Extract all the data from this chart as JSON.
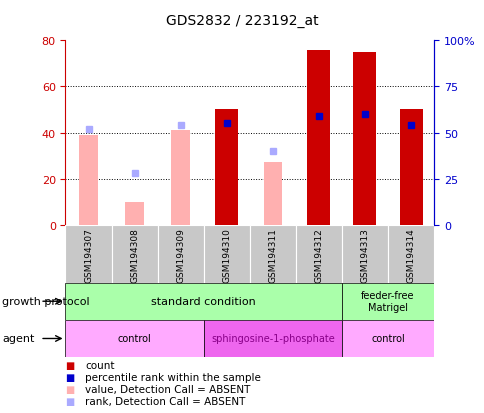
{
  "title": "GDS2832 / 223192_at",
  "samples": [
    "GSM194307",
    "GSM194308",
    "GSM194309",
    "GSM194310",
    "GSM194311",
    "GSM194312",
    "GSM194313",
    "GSM194314"
  ],
  "count_values": [
    null,
    null,
    null,
    50,
    null,
    76,
    75,
    50
  ],
  "count_color": "#cc0000",
  "absent_value_bars": [
    39,
    10,
    41,
    null,
    27,
    null,
    null,
    null
  ],
  "absent_value_color": "#ffb0b0",
  "absent_rank_dots": [
    52,
    28,
    54,
    null,
    40,
    null,
    null,
    null
  ],
  "absent_rank_color": "#aaaaff",
  "present_rank_dots": [
    null,
    null,
    null,
    55,
    null,
    59,
    60,
    54
  ],
  "present_rank_color": "#0000cc",
  "ylim_left": [
    0,
    80
  ],
  "ylim_right": [
    0,
    100
  ],
  "yticks_left": [
    0,
    20,
    40,
    60,
    80
  ],
  "yticks_right": [
    0,
    25,
    50,
    75,
    100
  ],
  "ytick_labels_right": [
    "0",
    "25",
    "50",
    "75",
    "100%"
  ],
  "left_axis_color": "#cc0000",
  "right_axis_color": "#0000cc",
  "grid_lines": [
    20,
    40,
    60
  ],
  "growth_spans": [
    {
      "label": "standard condition",
      "start": 0,
      "end": 6,
      "color": "#aaffaa"
    },
    {
      "label": "feeder-free\nMatrigel",
      "start": 6,
      "end": 8,
      "color": "#aaffaa"
    }
  ],
  "agent_spans": [
    {
      "label": "control",
      "start": 0,
      "end": 3,
      "color": "#ffaaff"
    },
    {
      "label": "sphingosine-1-phosphate",
      "start": 3,
      "end": 6,
      "color": "#ee66ee"
    },
    {
      "label": "control",
      "start": 6,
      "end": 8,
      "color": "#ffaaff"
    }
  ],
  "agent_text_colors": [
    "black",
    "#880088",
    "black"
  ],
  "row_label_growth": "growth protocol",
  "row_label_agent": "agent",
  "sample_bg_color": "#c8c8c8",
  "legend_items": [
    {
      "label": "count",
      "color": "#cc0000"
    },
    {
      "label": "percentile rank within the sample",
      "color": "#0000cc"
    },
    {
      "label": "value, Detection Call = ABSENT",
      "color": "#ffb0b0"
    },
    {
      "label": "rank, Detection Call = ABSENT",
      "color": "#aaaaff"
    }
  ]
}
